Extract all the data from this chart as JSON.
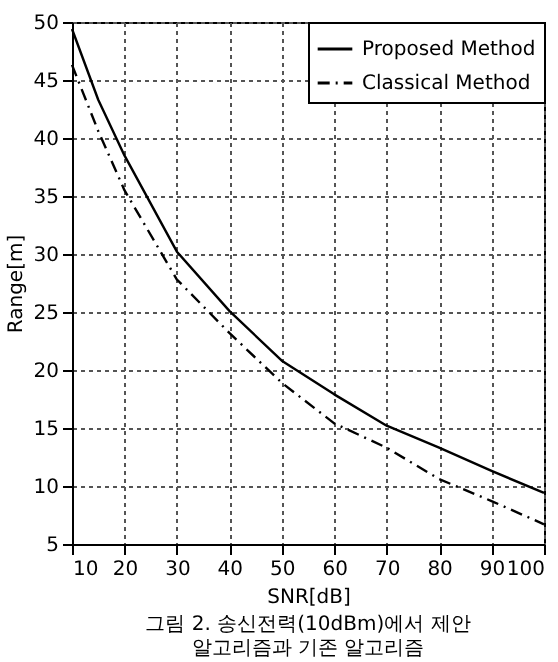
{
  "chart_data": {
    "type": "line",
    "xlabel": "SNR[dB]",
    "ylabel": "Range[m]",
    "x": [
      10,
      15,
      20,
      30,
      40,
      50,
      60,
      70,
      80,
      90,
      100
    ],
    "series": [
      {
        "name": "Proposed Method",
        "color": "#000000",
        "line_style": "solid",
        "values": [
          49.4,
          43.3,
          38.5,
          30.2,
          25.1,
          20.8,
          17.9,
          15.2,
          13.3,
          11.3,
          9.4
        ]
      },
      {
        "name": "Classical Method",
        "color": "#000000",
        "line_style": "dashdot",
        "values": [
          46.3,
          40.6,
          35.5,
          27.8,
          23.2,
          18.9,
          15.4,
          13.3,
          10.6,
          8.7,
          6.7
        ]
      }
    ],
    "xlim": [
      10,
      100
    ],
    "xticks": [
      10,
      20,
      30,
      40,
      50,
      60,
      70,
      80,
      90,
      100
    ],
    "ylim": [
      5,
      50
    ],
    "yticks": [
      5,
      10,
      15,
      20,
      25,
      30,
      35,
      40,
      45,
      50
    ],
    "grid": true,
    "legend": "top right",
    "marker": "none",
    "annotations": [
      "그림 2. 송신전력(10dBm)에서 제안 알고리즘과 기존 알고리즘"
    ]
  }
}
